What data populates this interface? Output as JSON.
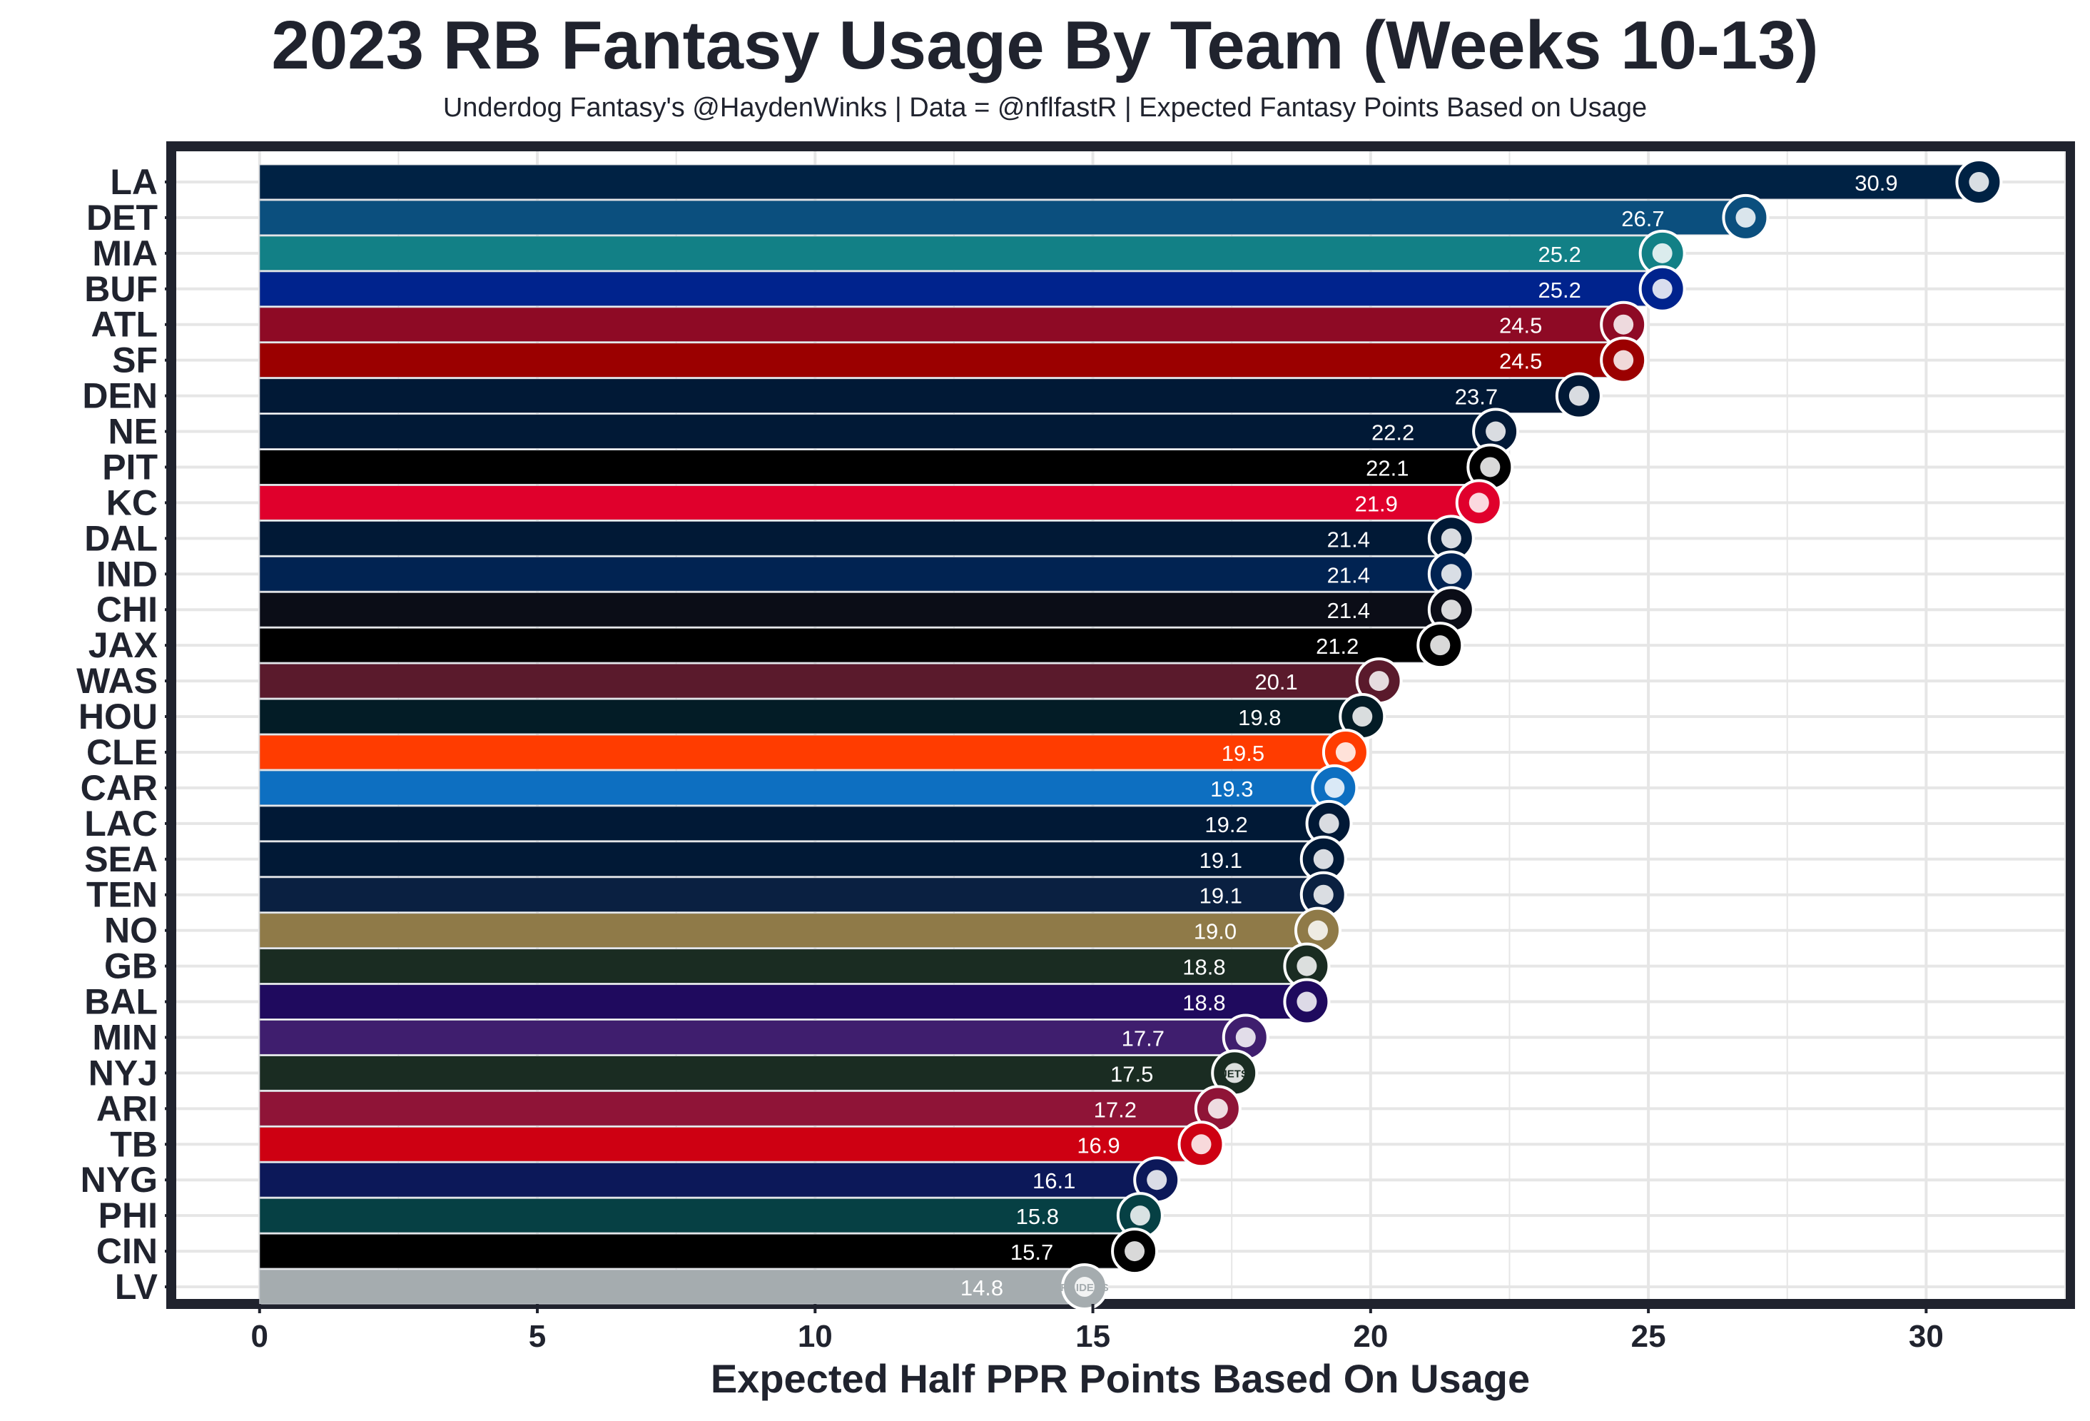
{
  "chart_data": {
    "type": "bar",
    "orientation": "horizontal",
    "title": "2023 RB Fantasy Usage By Team (Weeks 10-13)",
    "subtitle": "Underdog Fantasy's @HaydenWinks | Data = @nflfastR | Expected Fantasy Points Based on Usage",
    "xlabel": "Expected Half PPR Points Based On Usage",
    "ylabel": "",
    "xlim": [
      -1.5,
      32.5
    ],
    "xticks": [
      0,
      5,
      10,
      15,
      20,
      25,
      30
    ],
    "grid": true,
    "legend": "none",
    "value_labels": true,
    "categories": [
      "LA",
      "DET",
      "MIA",
      "BUF",
      "ATL",
      "SF",
      "DEN",
      "NE",
      "PIT",
      "KC",
      "DAL",
      "IND",
      "CHI",
      "JAX",
      "WAS",
      "HOU",
      "CLE",
      "CAR",
      "LAC",
      "SEA",
      "TEN",
      "NO",
      "GB",
      "BAL",
      "MIN",
      "NYJ",
      "ARI",
      "TB",
      "NYG",
      "PHI",
      "CIN",
      "LV"
    ],
    "values": [
      30.9,
      26.7,
      25.2,
      25.2,
      24.5,
      24.5,
      23.7,
      22.2,
      22.1,
      21.9,
      21.4,
      21.4,
      21.4,
      21.2,
      20.1,
      19.8,
      19.5,
      19.3,
      19.2,
      19.1,
      19.1,
      19.0,
      18.8,
      18.8,
      17.7,
      17.5,
      17.2,
      16.9,
      16.1,
      15.8,
      15.7,
      14.8
    ],
    "value_labels_text": [
      "30.9",
      "26.7",
      "25.2",
      "25.2",
      "24.5",
      "24.5",
      "23.7",
      "22.2",
      "22.1",
      "21.9",
      "21.4",
      "21.4",
      "21.4",
      "21.2",
      "20.1",
      "19.8",
      "19.5",
      "19.3",
      "19.2",
      "19.1",
      "19.1",
      "19.0",
      "18.8",
      "18.8",
      "17.7",
      "17.5",
      "17.2",
      "16.9",
      "16.1",
      "15.8",
      "15.7",
      "14.8"
    ],
    "colors": [
      "#002244",
      "#0B4F7E",
      "#128086",
      "#00238D",
      "#8E0A25",
      "#9B0000",
      "#011936",
      "#011936",
      "#000000",
      "#E0002C",
      "#011936",
      "#012352",
      "#0B0D17",
      "#000000",
      "#5A1A2C",
      "#031C26",
      "#FF3C00",
      "#0D6FC1",
      "#011936",
      "#011936",
      "#0A2041",
      "#8F7A48",
      "#1A2C22",
      "#1F0A5E",
      "#3F1E6E",
      "#1A2C22",
      "#8F1437",
      "#CE0012",
      "#0C1859",
      "#064044",
      "#000000",
      "#A5ACAF"
    ],
    "logos": [
      "rams-logo",
      "lions-logo",
      "dolphins-logo",
      "bills-logo",
      "falcons-logo",
      "49ers-logo",
      "broncos-logo",
      "patriots-logo",
      "steelers-logo",
      "chiefs-logo",
      "cowboys-logo",
      "colts-logo",
      "bears-logo",
      "jaguars-logo",
      "commanders-logo",
      "texans-logo",
      "browns-logo",
      "panthers-logo",
      "chargers-logo",
      "seahawks-logo",
      "titans-logo",
      "saints-logo",
      "packers-logo",
      "ravens-logo",
      "vikings-logo",
      "jets-logo",
      "cardinals-logo",
      "buccaneers-logo",
      "giants-logo",
      "eagles-logo",
      "bengals-logo",
      "raiders-logo"
    ],
    "logo_text": {
      "NYJ": "JETS",
      "LV": "RAIDERS"
    }
  }
}
